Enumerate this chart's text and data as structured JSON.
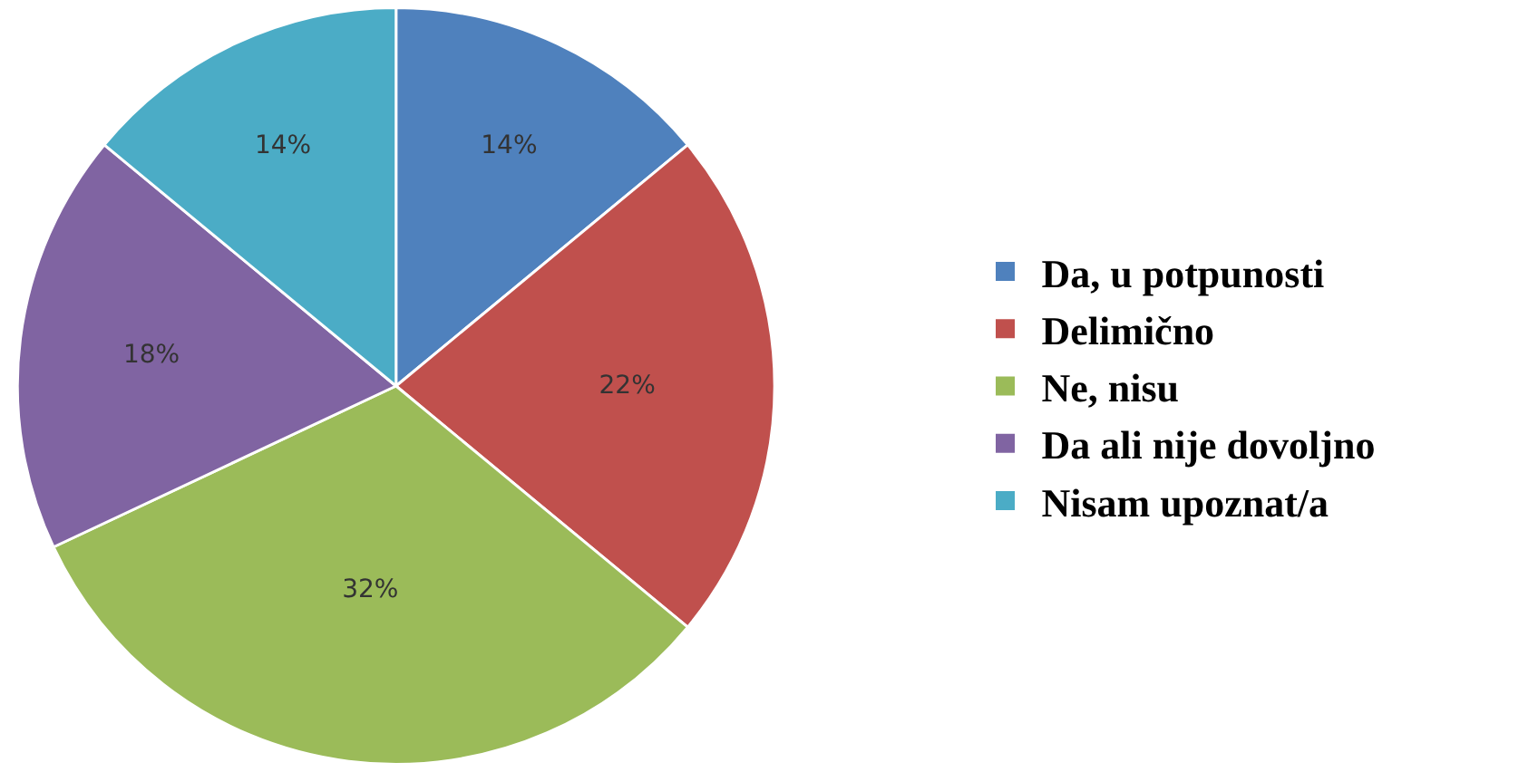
{
  "chart_data": {
    "type": "pie",
    "categories": [
      "Da, u potpunosti",
      "Delimično",
      "Ne, nisu",
      "Da ali nije dovoljno",
      "Nisam upoznat/a"
    ],
    "values": [
      14,
      22,
      32,
      18,
      14
    ],
    "colors": [
      "#4f81bd",
      "#c0504d",
      "#9bbb59",
      "#8064a2",
      "#4bacc6"
    ],
    "value_labels": [
      "14%",
      "22%",
      "32%",
      "18%",
      "14%"
    ],
    "legend": "right"
  }
}
